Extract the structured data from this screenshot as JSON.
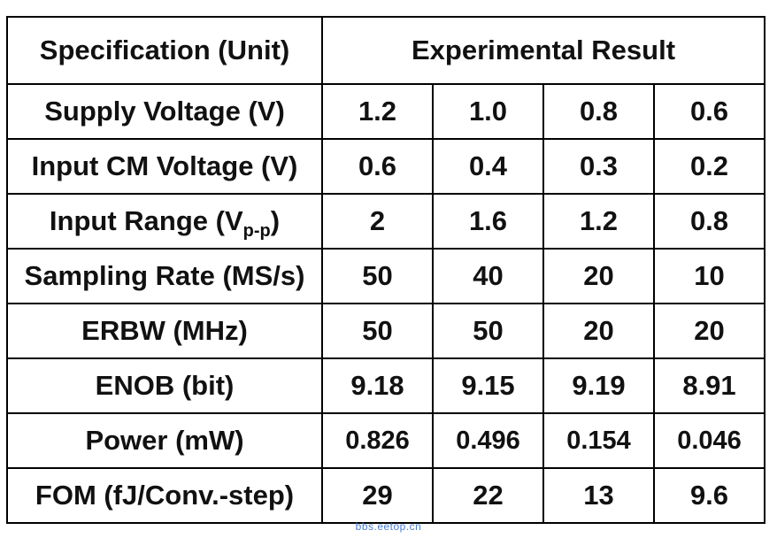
{
  "table": {
    "header": {
      "spec_label": "Specification (Unit)",
      "result_label": "Experimental Result"
    },
    "rows": [
      {
        "label": "Supply Voltage (V)",
        "values": [
          "1.2",
          "1.0",
          "0.8",
          "0.6"
        ]
      },
      {
        "label": "Input CM Voltage (V)",
        "values": [
          "0.6",
          "0.4",
          "0.3",
          "0.2"
        ]
      },
      {
        "label_main": "Input Range (V",
        "label_sub": "p-p",
        "label_end": ")",
        "values": [
          "2",
          "1.6",
          "1.2",
          "0.8"
        ]
      },
      {
        "label": "Sampling Rate (MS/s)",
        "values": [
          "50",
          "40",
          "20",
          "10"
        ]
      },
      {
        "label": "ERBW (MHz)",
        "values": [
          "50",
          "50",
          "20",
          "20"
        ]
      },
      {
        "label": "ENOB (bit)",
        "values": [
          "9.18",
          "9.15",
          "9.19",
          "8.91"
        ]
      },
      {
        "label": "Power (mW)",
        "values": [
          "0.826",
          "0.496",
          "0.154",
          "0.046"
        ]
      },
      {
        "label": "FOM (fJ/Conv.-step)",
        "values": [
          "29",
          "22",
          "13",
          "9.6"
        ]
      }
    ]
  },
  "watermark": "bbs.eetop.cn"
}
